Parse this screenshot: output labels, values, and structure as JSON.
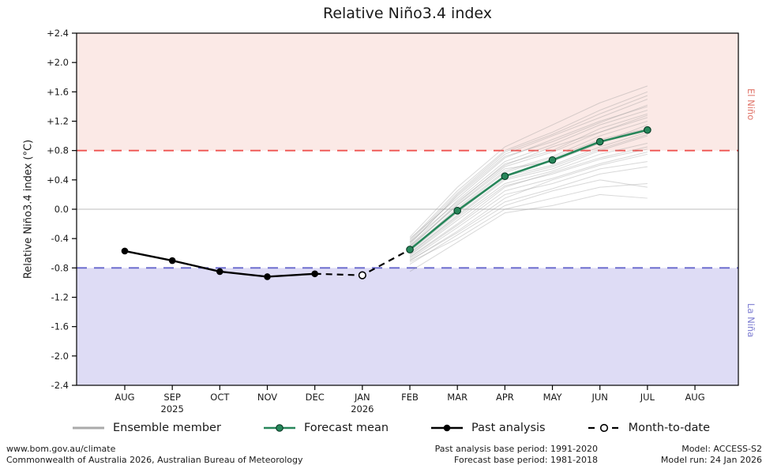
{
  "chart_data": {
    "type": "line",
    "title": "Relative Niño3.4 index",
    "ylabel": "Relative Niño3.4 index (°C)",
    "ylim": [
      -2.4,
      2.4
    ],
    "ytick_step": 0.4,
    "ytick_labels": [
      "+2.4",
      "+2.0",
      "+1.6",
      "+1.2",
      "+0.8",
      "+0.4",
      "0.0",
      "-0.4",
      "-0.8",
      "-1.2",
      "-1.6",
      "-2.0",
      "-2.4"
    ],
    "x_categories": [
      "AUG",
      "SEP",
      "OCT",
      "NOV",
      "DEC",
      "JAN",
      "FEB",
      "MAR",
      "APR",
      "MAY",
      "JUN",
      "JUL",
      "AUG"
    ],
    "x_year_labels": [
      {
        "index": 1,
        "label": "2025"
      },
      {
        "index": 5,
        "label": "2026"
      }
    ],
    "thresholds": {
      "el_nino": 0.8,
      "la_nina": -0.8,
      "el_nino_line_color": "#ef5350",
      "la_nina_line_color": "#6666cc",
      "zero_line": 0.0,
      "zero_line_color": "#bcbcbc"
    },
    "regions": {
      "el_nino_fill": "#fbe9e6",
      "la_nina_fill": "#dedcf5"
    },
    "right_labels": {
      "el_nino": "El Niño",
      "la_nina": "La Niña"
    },
    "series": {
      "past_analysis": {
        "start_index": 0,
        "months": [
          "AUG",
          "SEP",
          "OCT",
          "NOV",
          "DEC"
        ],
        "values": [
          -0.57,
          -0.7,
          -0.85,
          -0.92,
          -0.88
        ],
        "color": "#000000"
      },
      "month_to_date": {
        "start_index": 5,
        "months": [
          "JAN"
        ],
        "values": [
          -0.9
        ],
        "marker": "open-circle"
      },
      "forecast_mean": {
        "start_index": 6,
        "months": [
          "FEB",
          "MAR",
          "APR",
          "MAY",
          "JUN",
          "JUL"
        ],
        "values": [
          -0.55,
          -0.02,
          0.45,
          0.67,
          0.92,
          1.08
        ],
        "color": "#27865a"
      },
      "ensemble_members": {
        "start_index": 6,
        "color": "#999999",
        "values": [
          [
            -0.65,
            -0.2,
            0.3,
            0.5,
            0.7,
            0.85
          ],
          [
            -0.55,
            0.0,
            0.5,
            0.7,
            0.95,
            1.1
          ],
          [
            -0.7,
            -0.3,
            0.15,
            0.4,
            0.6,
            0.75
          ],
          [
            -0.45,
            0.1,
            0.6,
            0.85,
            1.05,
            1.25
          ],
          [
            -0.6,
            -0.1,
            0.4,
            0.55,
            0.8,
            1.0
          ],
          [
            -0.5,
            0.05,
            0.55,
            0.65,
            0.9,
            1.15
          ],
          [
            -0.75,
            -0.35,
            0.05,
            0.25,
            0.4,
            0.3
          ],
          [
            -0.4,
            0.15,
            0.7,
            0.95,
            1.2,
            1.4
          ],
          [
            -0.58,
            -0.05,
            0.45,
            0.6,
            0.85,
            1.05
          ],
          [
            -0.52,
            0.08,
            0.62,
            0.8,
            1.1,
            1.3
          ],
          [
            -0.68,
            -0.25,
            0.2,
            0.35,
            0.55,
            0.65
          ],
          [
            -0.48,
            0.2,
            0.75,
            1.0,
            1.25,
            1.5
          ],
          [
            -0.62,
            -0.12,
            0.35,
            0.52,
            0.75,
            0.9
          ],
          [
            -0.55,
            0.02,
            0.52,
            0.72,
            1.0,
            1.2
          ],
          [
            -0.72,
            -0.4,
            0.0,
            0.15,
            0.3,
            0.35
          ],
          [
            -0.42,
            0.25,
            0.8,
            1.05,
            1.35,
            1.6
          ],
          [
            -0.6,
            -0.08,
            0.42,
            0.58,
            0.82,
            1.02
          ],
          [
            -0.5,
            0.12,
            0.65,
            0.88,
            1.15,
            1.35
          ],
          [
            -0.66,
            -0.22,
            0.25,
            0.42,
            0.62,
            0.78
          ],
          [
            -0.46,
            0.18,
            0.72,
            0.92,
            1.18,
            1.42
          ],
          [
            -0.63,
            -0.15,
            0.32,
            0.48,
            0.68,
            0.82
          ],
          [
            -0.53,
            0.06,
            0.58,
            0.78,
            1.05,
            1.28
          ],
          [
            -0.7,
            -0.32,
            0.1,
            0.28,
            0.48,
            0.58
          ],
          [
            -0.44,
            0.22,
            0.78,
            1.02,
            1.3,
            1.55
          ],
          [
            -0.85,
            -0.45,
            -0.05,
            0.05,
            0.2,
            0.15
          ],
          [
            -0.38,
            0.3,
            0.85,
            1.15,
            1.45,
            1.68
          ]
        ]
      }
    },
    "legend_position": "bottom",
    "grid": false
  },
  "legend": {
    "items": [
      {
        "label": "Ensemble member"
      },
      {
        "label": "Forecast mean"
      },
      {
        "label": "Past analysis"
      },
      {
        "label": "Month-to-date"
      }
    ]
  },
  "footer": {
    "left_line1": "www.bom.gov.au/climate",
    "left_line2": "Commonwealth of Australia 2026, Australian Bureau of Meteorology",
    "mid_line1": "Past analysis base period: 1991-2020",
    "mid_line2": "Forecast base period: 1981-2018",
    "right_line1": "Model: ACCESS-S2",
    "right_line2": "Model run: 24 Jan 2026"
  }
}
